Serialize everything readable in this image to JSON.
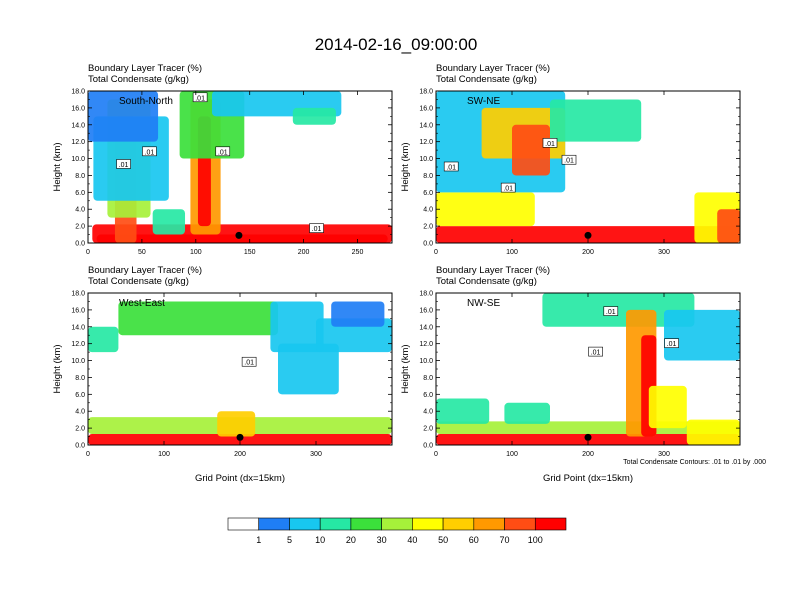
{
  "figure": {
    "title": "2014-02-16_09:00:00",
    "contour_note": "Total Condensate Contours: .01 to .01 by .000",
    "colorbar": {
      "colors": [
        "#ffffff",
        "#1f7ef5",
        "#18c7f0",
        "#26e8a4",
        "#3be03b",
        "#a6f13a",
        "#ffff00",
        "#ffce00",
        "#ff9900",
        "#ff4d14",
        "#ff0000"
      ],
      "labels": [
        "1",
        "5",
        "10",
        "20",
        "30",
        "40",
        "50",
        "60",
        "70",
        "100"
      ]
    }
  },
  "chart_data": [
    {
      "type": "heatmap",
      "id": "south-north",
      "panel_label": "South-North",
      "title_line1": "Boundary Layer Tracer   (%)",
      "title_line2": "Total Condensate   (g/kg)",
      "ylabel": "Height (km)",
      "xlabel": "",
      "xlim": [
        0,
        282
      ],
      "ylim": [
        0,
        18
      ],
      "xticks": [
        0,
        50,
        100,
        150,
        200,
        250
      ],
      "xtick_labels": [
        "0",
        "50",
        "100",
        "150",
        "200",
        "250"
      ],
      "yticks": [
        0,
        2,
        4,
        6,
        8,
        10,
        12,
        14,
        16,
        18
      ],
      "ytick_labels": [
        "0.0",
        "2.0",
        "4.0",
        "6.0",
        "8.0",
        "10.0",
        "12.0",
        "14.0",
        "16.0",
        "18.0"
      ],
      "marker": {
        "x": 140,
        "y": 0.9
      },
      "contour_labels": [
        {
          "text": ".01",
          "x": 33,
          "y": 9.3
        },
        {
          "text": ".01",
          "x": 57,
          "y": 10.8
        },
        {
          "text": ".01",
          "x": 104,
          "y": 17.2
        },
        {
          "text": ".01",
          "x": 125,
          "y": 10.8
        },
        {
          "text": ".01",
          "x": 212,
          "y": 1.7
        }
      ],
      "features": [
        {
          "x": 4,
          "y": 0,
          "w": 278,
          "h": 2.2,
          "level": 10
        },
        {
          "x": 8,
          "y": 0,
          "w": 270,
          "h": 1.0,
          "level": 10
        },
        {
          "x": 25,
          "y": 0,
          "w": 20,
          "h": 15,
          "level": 9
        },
        {
          "x": 18,
          "y": 3,
          "w": 40,
          "h": 14,
          "level": 5
        },
        {
          "x": 5,
          "y": 5,
          "w": 70,
          "h": 10,
          "level": 2
        },
        {
          "x": 0,
          "y": 12,
          "w": 65,
          "h": 6,
          "level": 1
        },
        {
          "x": 95,
          "y": 1,
          "w": 28,
          "h": 16,
          "level": 8
        },
        {
          "x": 102,
          "y": 2,
          "w": 12,
          "h": 13,
          "level": 10
        },
        {
          "x": 85,
          "y": 10,
          "w": 60,
          "h": 8,
          "level": 4
        },
        {
          "x": 115,
          "y": 15,
          "w": 120,
          "h": 3,
          "level": 2
        },
        {
          "x": 190,
          "y": 14,
          "w": 40,
          "h": 2,
          "level": 3
        },
        {
          "x": 60,
          "y": 1,
          "w": 30,
          "h": 3,
          "level": 3
        }
      ]
    },
    {
      "type": "heatmap",
      "id": "sw-ne",
      "panel_label": "SW-NE",
      "title_line1": "Boundary Layer Tracer   (%)",
      "title_line2": "Total Condensate   (g/kg)",
      "ylabel": "Height (km)",
      "xlabel": "",
      "xlim": [
        0,
        400
      ],
      "ylim": [
        0,
        18
      ],
      "xticks": [
        0,
        100,
        200,
        300
      ],
      "xtick_labels": [
        "0",
        "100",
        "200",
        "300"
      ],
      "yticks": [
        0,
        2,
        4,
        6,
        8,
        10,
        12,
        14,
        16,
        18
      ],
      "ytick_labels": [
        "0.0",
        "2.0",
        "4.0",
        "6.0",
        "8.0",
        "10.0",
        "12.0",
        "14.0",
        "16.0",
        "18.0"
      ],
      "marker": {
        "x": 200,
        "y": 0.9
      },
      "contour_labels": [
        {
          "text": ".01",
          "x": 20,
          "y": 9.0
        },
        {
          "text": ".01",
          "x": 95,
          "y": 6.5
        },
        {
          "text": ".01",
          "x": 150,
          "y": 11.8
        },
        {
          "text": ".01",
          "x": 175,
          "y": 9.8
        }
      ],
      "features": [
        {
          "x": 0,
          "y": 0,
          "w": 400,
          "h": 2.0,
          "level": 10
        },
        {
          "x": 0,
          "y": 2,
          "w": 130,
          "h": 4,
          "level": 6
        },
        {
          "x": 0,
          "y": 6,
          "w": 170,
          "h": 12,
          "level": 2
        },
        {
          "x": 60,
          "y": 10,
          "w": 110,
          "h": 6,
          "level": 7
        },
        {
          "x": 100,
          "y": 8,
          "w": 50,
          "h": 6,
          "level": 9
        },
        {
          "x": 150,
          "y": 12,
          "w": 120,
          "h": 5,
          "level": 3
        },
        {
          "x": 340,
          "y": 0,
          "w": 60,
          "h": 6,
          "level": 6
        },
        {
          "x": 370,
          "y": 0,
          "w": 30,
          "h": 4,
          "level": 9
        }
      ]
    },
    {
      "type": "heatmap",
      "id": "west-east",
      "panel_label": "West-East",
      "title_line1": "Boundary Layer Tracer   (%)",
      "title_line2": "Total Condensate   (g/kg)",
      "ylabel": "Height (km)",
      "xlabel": "Grid Point (dx=15km)",
      "xlim": [
        0,
        400
      ],
      "ylim": [
        0,
        18
      ],
      "xticks": [
        0,
        100,
        200,
        300
      ],
      "xtick_labels": [
        "0",
        "100",
        "200",
        "300"
      ],
      "yticks": [
        0,
        2,
        4,
        6,
        8,
        10,
        12,
        14,
        16,
        18
      ],
      "ytick_labels": [
        "0.0",
        "2.0",
        "4.0",
        "6.0",
        "8.0",
        "10.0",
        "12.0",
        "14.0",
        "16.0",
        "18.0"
      ],
      "marker": {
        "x": 200,
        "y": 0.9
      },
      "contour_labels": [
        {
          "text": ".01",
          "x": 212,
          "y": 9.8
        }
      ],
      "features": [
        {
          "x": 0,
          "y": 0,
          "w": 400,
          "h": 1.3,
          "level": 10
        },
        {
          "x": 0,
          "y": 1.3,
          "w": 400,
          "h": 2.0,
          "level": 5
        },
        {
          "x": 170,
          "y": 1.0,
          "w": 50,
          "h": 3.0,
          "level": 7
        },
        {
          "x": 0,
          "y": 11,
          "w": 40,
          "h": 3,
          "level": 3
        },
        {
          "x": 40,
          "y": 13,
          "w": 210,
          "h": 4,
          "level": 4
        },
        {
          "x": 240,
          "y": 11,
          "w": 70,
          "h": 6,
          "level": 2
        },
        {
          "x": 250,
          "y": 6,
          "w": 80,
          "h": 6,
          "level": 2
        },
        {
          "x": 300,
          "y": 11,
          "w": 100,
          "h": 4,
          "level": 2
        },
        {
          "x": 320,
          "y": 14,
          "w": 70,
          "h": 3,
          "level": 1
        }
      ]
    },
    {
      "type": "heatmap",
      "id": "nw-se",
      "panel_label": "NW-SE",
      "title_line1": "Boundary Layer Tracer   (%)",
      "title_line2": "Total Condensate   (g/kg)",
      "ylabel": "Height (km)",
      "xlabel": "Grid Point (dx=15km)",
      "xlim": [
        0,
        400
      ],
      "ylim": [
        0,
        18
      ],
      "xticks": [
        0,
        100,
        200,
        300
      ],
      "xtick_labels": [
        "0",
        "100",
        "200",
        "300"
      ],
      "yticks": [
        0,
        2,
        4,
        6,
        8,
        10,
        12,
        14,
        16,
        18
      ],
      "ytick_labels": [
        "0.0",
        "2.0",
        "4.0",
        "6.0",
        "8.0",
        "10.0",
        "12.0",
        "14.0",
        "16.0",
        "18.0"
      ],
      "marker": {
        "x": 200,
        "y": 0.9
      },
      "contour_labels": [
        {
          "text": ".01",
          "x": 230,
          "y": 15.8
        },
        {
          "text": ".01",
          "x": 210,
          "y": 11.0
        },
        {
          "text": ".01",
          "x": 310,
          "y": 12.0
        }
      ],
      "features": [
        {
          "x": 0,
          "y": 0,
          "w": 400,
          "h": 1.3,
          "level": 10
        },
        {
          "x": 0,
          "y": 1.3,
          "w": 400,
          "h": 1.5,
          "level": 5
        },
        {
          "x": 0,
          "y": 2.5,
          "w": 70,
          "h": 3,
          "level": 3
        },
        {
          "x": 90,
          "y": 2.5,
          "w": 60,
          "h": 2.5,
          "level": 3
        },
        {
          "x": 140,
          "y": 14,
          "w": 200,
          "h": 4,
          "level": 3
        },
        {
          "x": 250,
          "y": 1,
          "w": 40,
          "h": 15,
          "level": 8
        },
        {
          "x": 270,
          "y": 1,
          "w": 20,
          "h": 12,
          "level": 10
        },
        {
          "x": 280,
          "y": 2,
          "w": 50,
          "h": 5,
          "level": 6
        },
        {
          "x": 300,
          "y": 10,
          "w": 100,
          "h": 6,
          "level": 2
        },
        {
          "x": 330,
          "y": 0,
          "w": 70,
          "h": 3,
          "level": 6
        }
      ]
    }
  ]
}
